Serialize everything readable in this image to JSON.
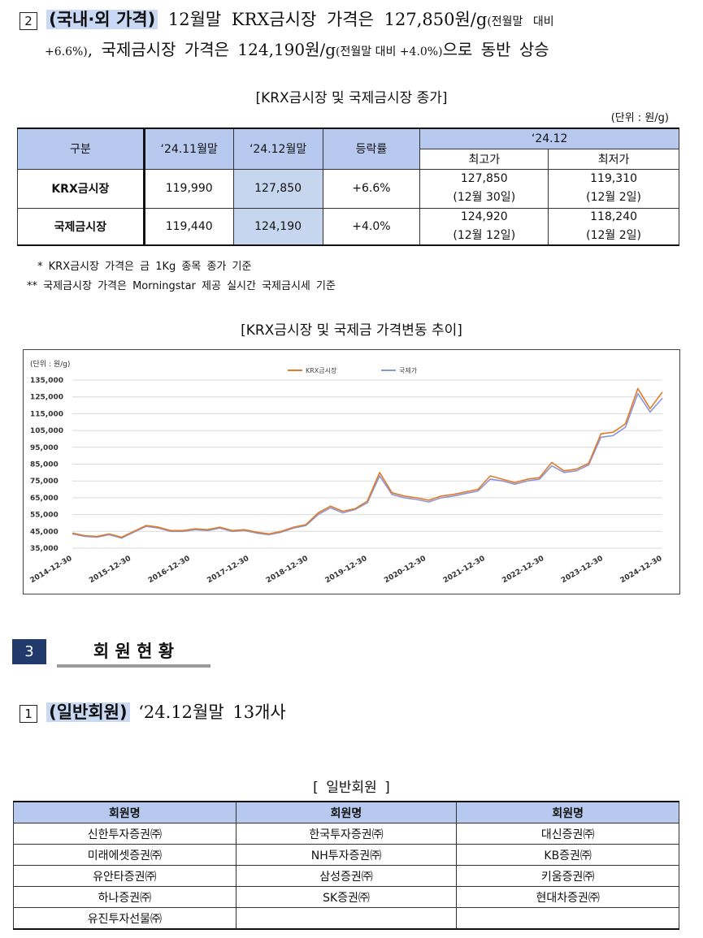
{
  "section2": {
    "num": "2",
    "heading": "(국내·외 가격)",
    "line1_main": " 12월말 KRX금시장 가격은 127,850원/g",
    "line1_small": "(전월말 대비",
    "line2_small1": "+6.6%)",
    "line2_main": ", 국제금시장 가격은 124,190원/g",
    "line2_small2": "(전월말 대비 +4.0%)",
    "line2_end": "으로 동반 상승"
  },
  "table1": {
    "title": "[KRX금시장 및 국제금시장 종가]",
    "unit": "(단위 : 원/g)",
    "headers": {
      "col0": "구분",
      "col1": "‘24.11월말",
      "col2": "‘24.12월말",
      "col3": "등락률",
      "group": "‘24.12",
      "high": "최고가",
      "low": "최저가"
    },
    "rows": [
      {
        "name": "KRX금시장",
        "nov": "119,990",
        "dec": "127,850",
        "change": "+6.6%",
        "high": "127,850",
        "high_date": "(12월 30일)",
        "low": "119,310",
        "low_date": "(12월 2일)"
      },
      {
        "name": "국제금시장",
        "nov": "119,440",
        "dec": "124,190",
        "change": "+4.0%",
        "high": "124,920",
        "high_date": "(12월 12일)",
        "low": "118,240",
        "low_date": "(12월 2일)"
      }
    ],
    "note1": "* KRX금시장 가격은 금 1Kg 종목 종가 기준",
    "note2": "** 국제금시장 가격은 Morningstar 제공 실시간 국제금시세 기준"
  },
  "chart_title": "[KRX금시장 및 국제금 가격변동 추이]",
  "chart_data": {
    "type": "line",
    "unit_label": "(단위 : 원/g)",
    "x_ticks": [
      "2014-12-30",
      "2015-12-30",
      "2016-12-30",
      "2017-12-30",
      "2018-12-30",
      "2019-12-30",
      "2020-12-30",
      "2021-12-30",
      "2022-12-30",
      "2023-12-30",
      "2024-12-30"
    ],
    "y_ticks": [
      "135,000",
      "125,000",
      "115,000",
      "105,000",
      "95,000",
      "85,000",
      "75,000",
      "65,000",
      "55,000",
      "45,000",
      "35,000"
    ],
    "ylim": [
      35000,
      135000
    ],
    "legend_position": "top-center",
    "series": [
      {
        "name": "KRX금시장",
        "color": "#e07b2a",
        "values": [
          44000,
          42500,
          42000,
          43500,
          41500,
          45000,
          48500,
          47500,
          45500,
          45500,
          46500,
          46000,
          47500,
          45500,
          46000,
          44500,
          43500,
          45000,
          47500,
          49000,
          56000,
          60000,
          57000,
          58500,
          63000,
          80000,
          68000,
          66000,
          65000,
          63500,
          66000,
          67000,
          68500,
          70000,
          78000,
          76000,
          74000,
          76000,
          77000,
          86000,
          81000,
          82000,
          85500,
          103000,
          104000,
          109000,
          130000,
          118000,
          127850
        ]
      },
      {
        "name": "국제가",
        "color": "#8c96d6",
        "values": [
          43500,
          42000,
          41500,
          43000,
          41000,
          44500,
          48000,
          47000,
          45000,
          45000,
          46000,
          45500,
          47000,
          45000,
          45500,
          44000,
          43000,
          44500,
          47000,
          48500,
          55000,
          59000,
          56000,
          58000,
          62000,
          78000,
          67000,
          65000,
          64000,
          62500,
          65000,
          66000,
          67500,
          69000,
          76000,
          75000,
          73000,
          75000,
          76000,
          84000,
          80000,
          81000,
          84500,
          101000,
          102000,
          107000,
          127000,
          116000,
          124190
        ]
      }
    ]
  },
  "section3": {
    "num": "3",
    "title": "회 원 현 황"
  },
  "section3_1": {
    "num": "1",
    "heading": "(일반회원)",
    "text": " ‘24.12월말 13개사"
  },
  "table2": {
    "title": "[ 일반회원 ]",
    "header": "회원명",
    "rows": [
      [
        "신한투자증권㈜",
        "한국투자증권㈜",
        "대신증권㈜"
      ],
      [
        "미래에셋증권㈜",
        "NH투자증권㈜",
        "KB증권㈜"
      ],
      [
        "유안타증권㈜",
        "삼성증권㈜",
        "키움증권㈜"
      ],
      [
        "하나증권㈜",
        "SK증권㈜",
        "현대차증권㈜"
      ],
      [
        "유진투자선물㈜",
        "",
        ""
      ]
    ]
  }
}
